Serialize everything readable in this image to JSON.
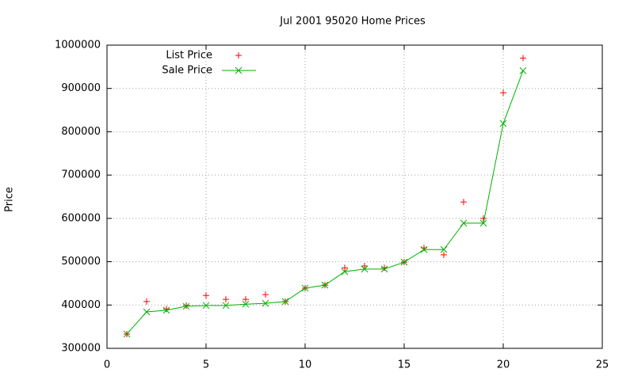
{
  "chart_data": {
    "type": "line",
    "title": "Jul 2001 95020 Home Prices",
    "y_label": "Price",
    "x": [
      1,
      2,
      3,
      4,
      5,
      6,
      7,
      8,
      9,
      10,
      11,
      12,
      13,
      14,
      15,
      16,
      17,
      18,
      19,
      20,
      21
    ],
    "series": [
      {
        "name": "List Price",
        "color": "#ff0000",
        "marker": "plus",
        "mode": "points",
        "values": [
          333000,
          408000,
          391000,
          399000,
          422000,
          413000,
          413000,
          424000,
          408000,
          439000,
          446000,
          486000,
          490000,
          486000,
          499000,
          532000,
          516000,
          638000,
          600000,
          890000,
          970000
        ]
      },
      {
        "name": "Sale Price",
        "color": "#00b000",
        "marker": "cross",
        "mode": "linespoints",
        "values": [
          333000,
          384000,
          388000,
          397000,
          399000,
          399000,
          402000,
          404000,
          408000,
          439000,
          446000,
          477000,
          483000,
          483000,
          499000,
          528000,
          528000,
          589000,
          589000,
          819000,
          941000
        ]
      }
    ],
    "xlim": [
      0,
      25
    ],
    "xticks": [
      0,
      5,
      10,
      15,
      20,
      25
    ],
    "ylim": [
      300000,
      1000000
    ],
    "yticks": [
      300000,
      400000,
      500000,
      600000,
      700000,
      800000,
      900000,
      1000000
    ],
    "grid": true,
    "legend": "top-left"
  }
}
